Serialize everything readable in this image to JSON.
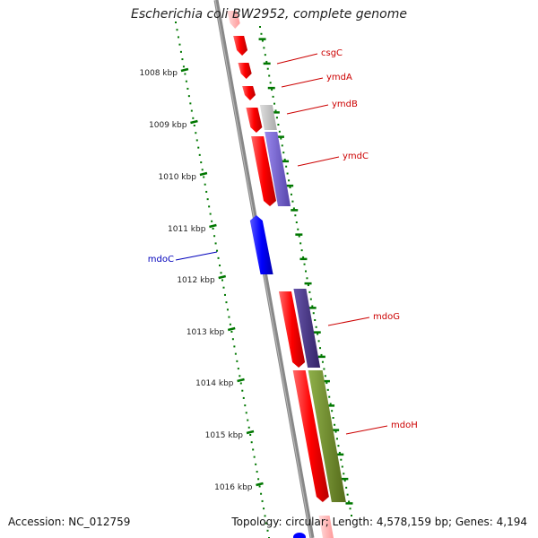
{
  "title": "Escherichia coli BW2952, complete genome",
  "footer": {
    "accession": "Accession: NC_012759",
    "summary": "Topology: circular; Length: 4,578,159 bp; Genes: 4,194"
  },
  "ticks": [
    "1008 kbp",
    "1009 kbp",
    "1010 kbp",
    "1011 kbp",
    "1012 kbp",
    "1013 kbp",
    "1014 kbp",
    "1015 kbp",
    "1016 kbp"
  ],
  "genes": [
    {
      "name": "csgC",
      "color": "#cc0000"
    },
    {
      "name": "ymdA",
      "color": "#cc0000"
    },
    {
      "name": "ymdB",
      "color": "#cc0000"
    },
    {
      "name": "ymdC",
      "color": "#cc0000"
    },
    {
      "name": "mdoC",
      "color": "#0000bb"
    },
    {
      "name": "mdoG",
      "color": "#cc0000"
    },
    {
      "name": "mdoH",
      "color": "#cc0000"
    }
  ],
  "colors": {
    "cds_forward": "#ff0000",
    "cds_reverse": "#0000ff",
    "backbone": "#888888",
    "tick": "#007700",
    "label_forward": "#cc0000",
    "label_reverse": "#0000bb",
    "feature_gray": "#bbbbbb",
    "feature_purple": "#7766cc",
    "feature_dark_purple": "#443388",
    "feature_olive": "#6b8e23"
  }
}
